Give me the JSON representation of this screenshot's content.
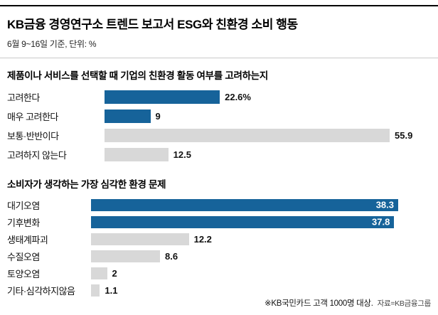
{
  "header": {
    "title": "KB금융 경영연구소 트렌드 보고서 ESG와 친환경 소비 행동",
    "subtitle": "6월 9~16일 기준, 단위: %"
  },
  "colors": {
    "blue": "#16639a",
    "gray": "#d8d8d8",
    "top_rule": "#000000"
  },
  "chart_data": [
    {
      "type": "bar",
      "orientation": "horizontal",
      "title": "제품이나 서비스를 선택할 때 기업의 친환경 활동 여부를 고려하는지",
      "unit": "%",
      "xlim": [
        0,
        55.9
      ],
      "grid": false,
      "legend": false,
      "rows": [
        {
          "label": "고려한다",
          "value": 22.6,
          "display": "22.6%",
          "color": "blue",
          "value_inside": false
        },
        {
          "label": "매우 고려한다",
          "value": 9,
          "display": "9",
          "color": "blue",
          "value_inside": false
        },
        {
          "label": "보통·반반이다",
          "value": 55.9,
          "display": "55.9",
          "color": "gray",
          "value_inside": false
        },
        {
          "label": "고려하지 않는다",
          "value": 12.5,
          "display": "12.5",
          "color": "gray",
          "value_inside": false
        }
      ]
    },
    {
      "type": "bar",
      "orientation": "horizontal",
      "title": "소비자가 생각하는 가장 심각한 환경 문제",
      "unit": "%",
      "xlim": [
        0,
        38.3
      ],
      "grid": false,
      "legend": false,
      "rows": [
        {
          "label": "대기오염",
          "value": 38.3,
          "display": "38.3",
          "color": "blue",
          "value_inside": true
        },
        {
          "label": "기후변화",
          "value": 37.8,
          "display": "37.8",
          "color": "blue",
          "value_inside": true
        },
        {
          "label": "생태계파괴",
          "value": 12.2,
          "display": "12.2",
          "color": "gray",
          "value_inside": false
        },
        {
          "label": "수질오염",
          "value": 8.6,
          "display": "8.6",
          "color": "gray",
          "value_inside": false
        },
        {
          "label": "토양오염",
          "value": 2,
          "display": "2",
          "color": "gray",
          "value_inside": false
        },
        {
          "label": "기타·심각하지않음",
          "value": 1.1,
          "display": "1.1",
          "color": "gray",
          "value_inside": false
        }
      ]
    }
  ],
  "footer": {
    "note": "※KB국민카드 고객 1000명 대상.",
    "source": "자료=KB금융그룹"
  }
}
